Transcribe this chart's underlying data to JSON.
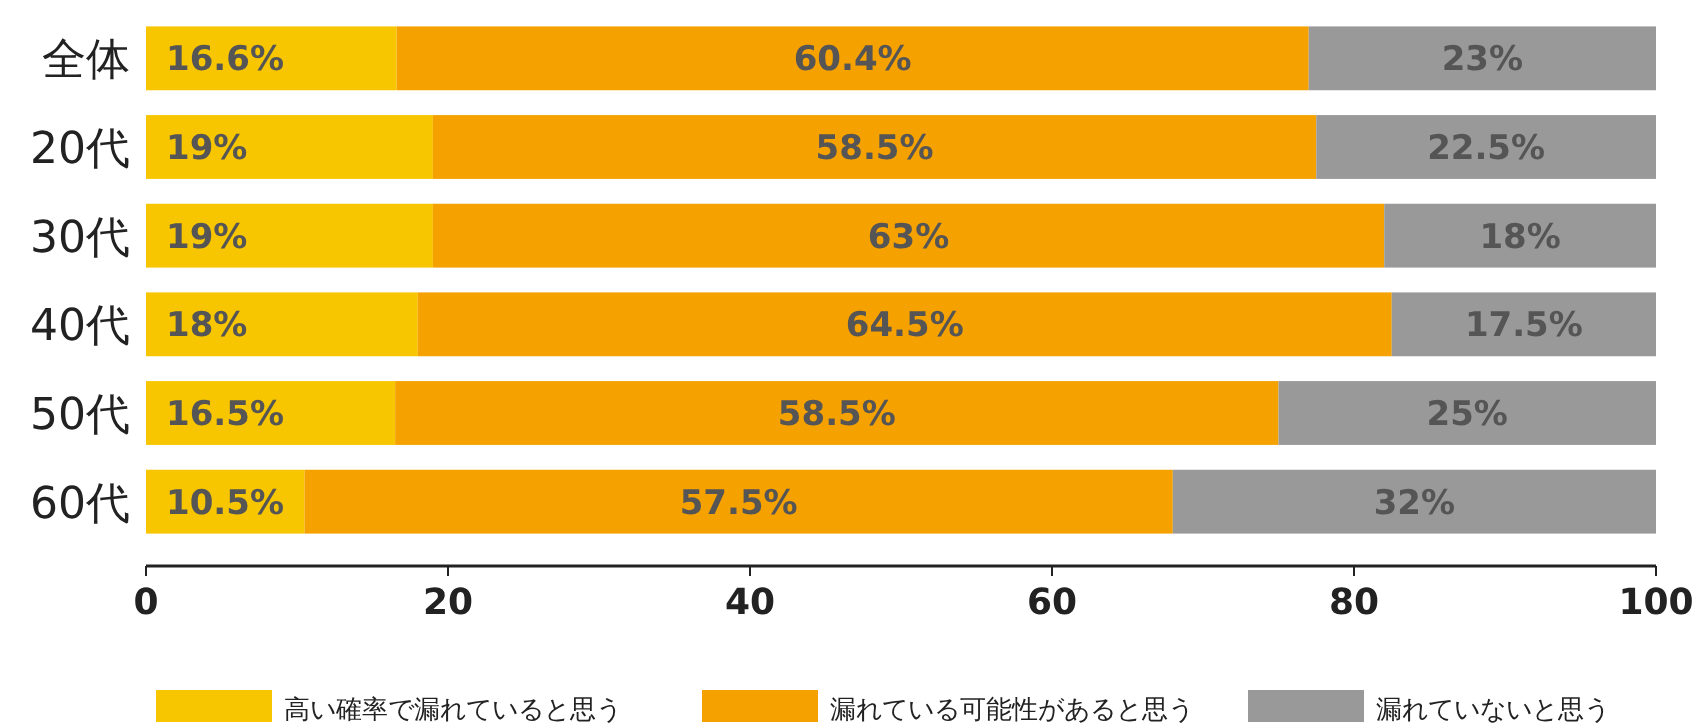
{
  "chart_data": {
    "type": "bar",
    "orientation": "horizontal",
    "stacked": true,
    "categories": [
      "全体",
      "20代",
      "30代",
      "40代",
      "50代",
      "60代"
    ],
    "series": [
      {
        "name": "高い確率で漏れていると思う",
        "color": "#f7c600",
        "values": [
          16.6,
          19,
          19,
          18,
          16.5,
          10.5
        ],
        "value_labels": [
          "16.6%",
          "19%",
          "19%",
          "18%",
          "16.5%",
          "10.5%"
        ]
      },
      {
        "name": "漏れている可能性があると思う",
        "color": "#f5a100",
        "values": [
          60.4,
          58.5,
          63,
          64.5,
          58.5,
          57.5
        ],
        "value_labels": [
          "60.4%",
          "58.5%",
          "63%",
          "64.5%",
          "58.5%",
          "57.5%"
        ]
      },
      {
        "name": "漏れていないと思う",
        "color": "#999999",
        "values": [
          23,
          22.5,
          18,
          17.5,
          25,
          32
        ],
        "value_labels": [
          "23%",
          "22.5%",
          "18%",
          "17.5%",
          "25%",
          "32%"
        ]
      }
    ],
    "xlim": [
      0,
      100
    ],
    "xticks": [
      0,
      20,
      40,
      60,
      80,
      100
    ],
    "legend": "bottom"
  }
}
